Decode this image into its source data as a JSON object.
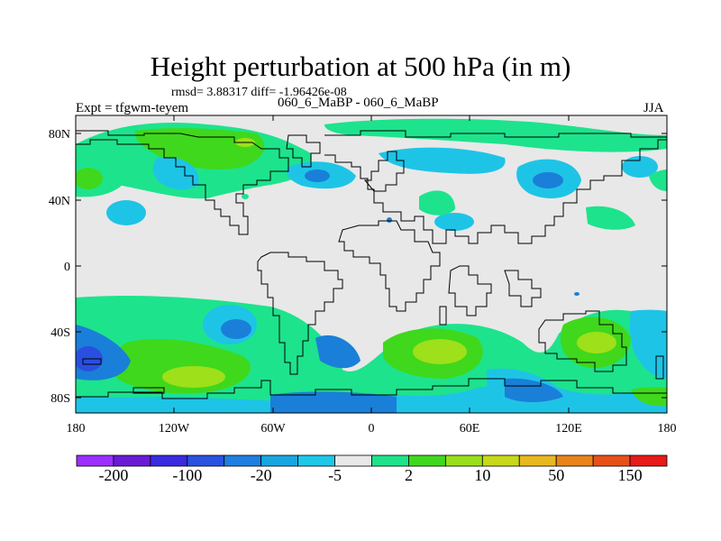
{
  "title": "Height perturbation at 500 hPa (in m)",
  "stats": "rmsd= 3.88317 diff= -1.96426e-08",
  "left_label": "Expt = tfgwm-teyem",
  "center_label": "060_6_MaBP - 060_6_MaBP",
  "right_label": "JJA",
  "lon_ticks": [
    "180",
    "120W",
    "60W",
    "0",
    "60E",
    "120E",
    "180"
  ],
  "lat_ticks": [
    "80N",
    "40N",
    "0",
    "40S",
    "80S"
  ],
  "colorbar": {
    "colors": [
      "#9b30ff",
      "#6a1bd6",
      "#3a2ae0",
      "#2a52e0",
      "#1e7fe0",
      "#18a6e0",
      "#1ec8e8",
      "#e8e8e8",
      "#1ee38a",
      "#40d81f",
      "#98e01a",
      "#c8d81a",
      "#e8b820",
      "#e8841a",
      "#e8501a",
      "#e81a1a"
    ],
    "labels": [
      "-200",
      "-100",
      "-20",
      "-5",
      "2",
      "10",
      "50",
      "150"
    ]
  },
  "legend_colors": {
    "blue": "#1a7fd8",
    "light_blue": "#1ec4e6",
    "mint": "#1de38c",
    "green": "#3fd81c",
    "yellow_green": "#9ee01a",
    "background": "#e8e8e8"
  }
}
